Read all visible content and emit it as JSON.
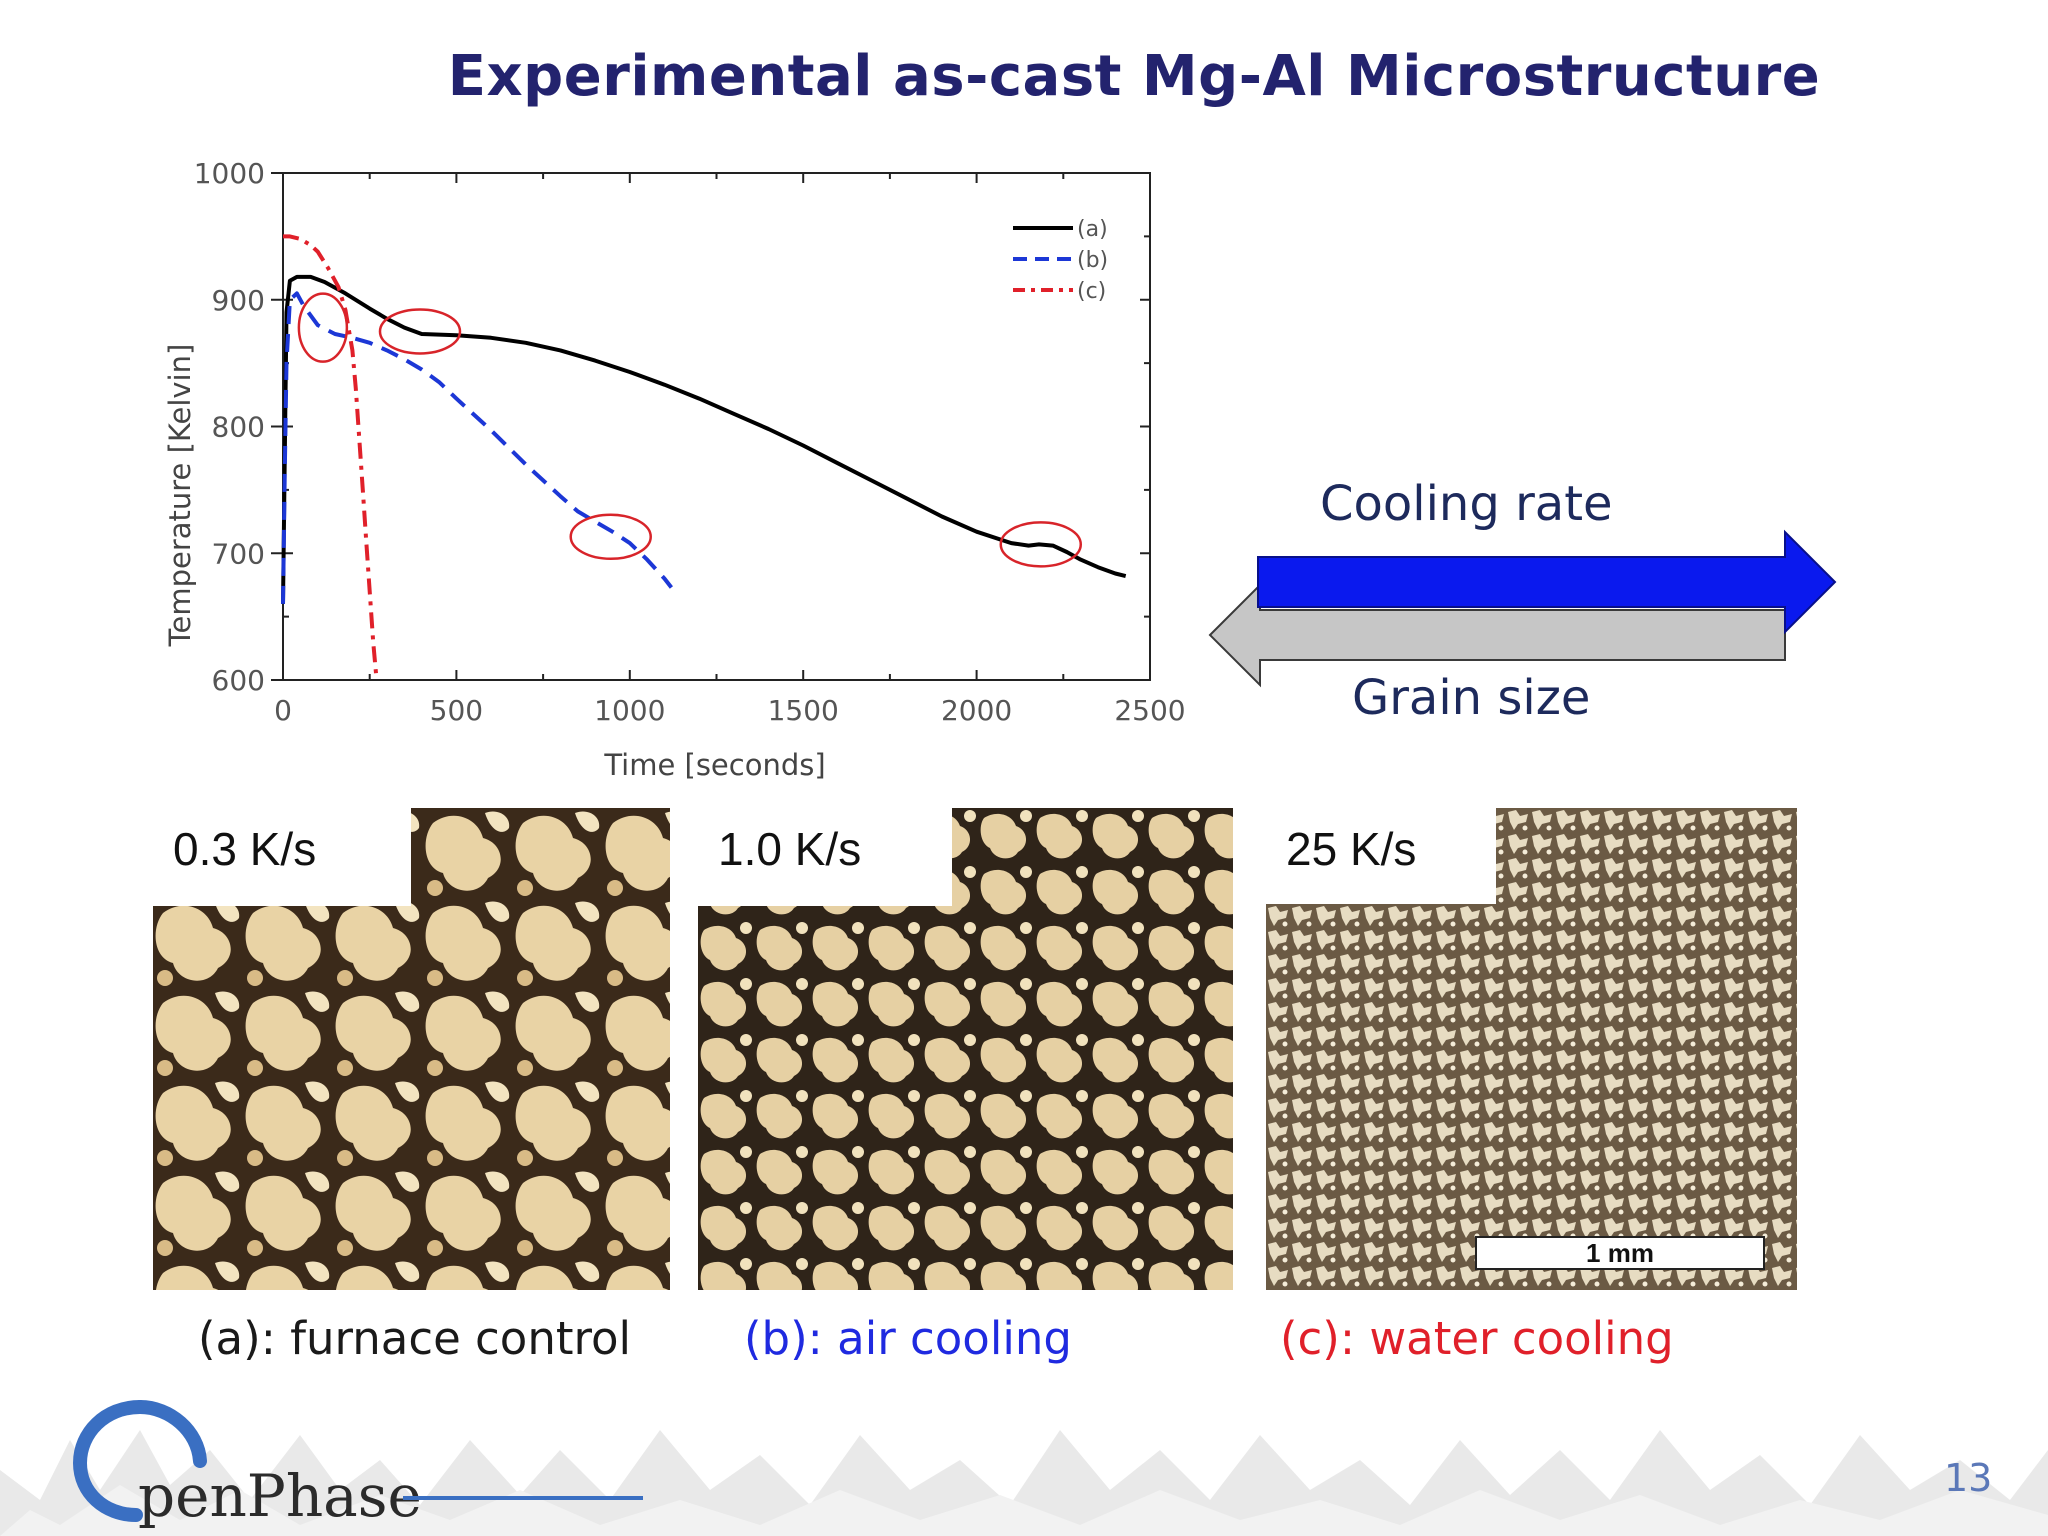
{
  "slide": {
    "title": "Experimental as-cast Mg-Al Microstructure",
    "page_number": "13"
  },
  "chart_data": {
    "type": "line",
    "title": "",
    "xlabel": "Time [seconds]",
    "ylabel": "Temperature [Kelvin]",
    "xlim": [
      0,
      2500
    ],
    "ylim": [
      600,
      1000
    ],
    "xticks": [
      "0",
      "500",
      "1000",
      "1500",
      "2000",
      "2500"
    ],
    "yticks": [
      "600",
      "700",
      "800",
      "900",
      "1000"
    ],
    "grid": false,
    "legend_position": "top-right",
    "series": [
      {
        "name": "(a)",
        "color": "#000000",
        "style": "solid",
        "x": [
          0,
          10,
          20,
          40,
          80,
          120,
          180,
          250,
          300,
          350,
          400,
          500,
          600,
          700,
          800,
          900,
          1000,
          1100,
          1200,
          1300,
          1400,
          1500,
          1600,
          1700,
          1800,
          1900,
          2000,
          2100,
          2150,
          2180,
          2220,
          2260,
          2300,
          2350,
          2400,
          2430
        ],
        "y": [
          660,
          890,
          915,
          918,
          918,
          914,
          905,
          893,
          885,
          878,
          873,
          872,
          870,
          866,
          860,
          852,
          843,
          833,
          822,
          810,
          798,
          785,
          771,
          757,
          743,
          729,
          717,
          708,
          706,
          707,
          706,
          701,
          695,
          689,
          684,
          682
        ]
      },
      {
        "name": "(b)",
        "color": "#1c37d6",
        "style": "dashed",
        "x": [
          0,
          5,
          10,
          20,
          40,
          60,
          100,
          150,
          200,
          250,
          300,
          350,
          400,
          450,
          500,
          600,
          700,
          800,
          850,
          900,
          950,
          1000,
          1050,
          1100,
          1120
        ],
        "y": [
          660,
          760,
          850,
          900,
          905,
          895,
          880,
          873,
          870,
          866,
          860,
          853,
          845,
          835,
          822,
          797,
          770,
          745,
          733,
          725,
          717,
          708,
          695,
          680,
          673
        ]
      },
      {
        "name": "(c)",
        "color": "#e0202a",
        "style": "dashdot",
        "x": [
          0,
          20,
          50,
          80,
          100,
          130,
          160,
          180,
          200,
          210,
          220,
          230,
          240,
          250,
          260,
          270
        ],
        "y": [
          950,
          950,
          948,
          943,
          938,
          925,
          910,
          892,
          860,
          830,
          790,
          750,
          710,
          670,
          630,
          600
        ]
      }
    ],
    "annotations": {
      "circle_color": "#d8242a",
      "circles": [
        {
          "x": 115,
          "y": 878
        },
        {
          "x": 395,
          "y": 875
        },
        {
          "x": 945,
          "y": 713
        },
        {
          "x": 2185,
          "y": 707
        }
      ]
    }
  },
  "arrows": {
    "cooling_rate_label": "Cooling rate",
    "grain_size_label": "Grain size",
    "cooling_rate_color": "#0a19ee",
    "grain_size_color": "#c6c6c6"
  },
  "micrographs": [
    {
      "label": "0.3 K/s",
      "caption": "(a): furnace control",
      "caption_color": "#1a1a1a"
    },
    {
      "label": "1.0 K/s",
      "caption": "(b): air cooling",
      "caption_color": "#1f2ae0"
    },
    {
      "label": "25 K/s",
      "caption": "(c): water cooling",
      "caption_color": "#e0202a"
    }
  ],
  "scale_bar": {
    "label": "1 mm"
  },
  "footer": {
    "logo_text": "penPhase",
    "logo_icon": "openphase-ring-icon"
  }
}
